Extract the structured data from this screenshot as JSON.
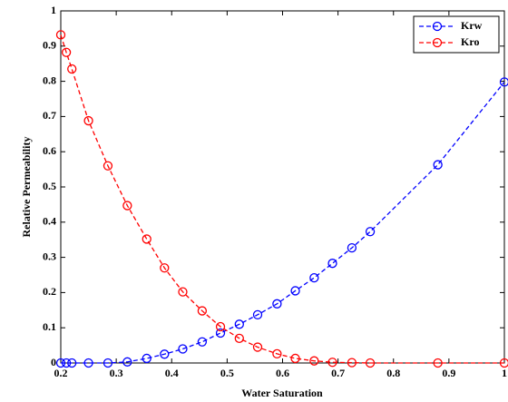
{
  "chart_data": {
    "type": "line",
    "xlabel": "Water Saturation",
    "ylabel": "Relative Permeability",
    "x": [
      0.2,
      0.21,
      0.22,
      0.25,
      0.285,
      0.32,
      0.355,
      0.387,
      0.42,
      0.455,
      0.488,
      0.522,
      0.555,
      0.59,
      0.623,
      0.657,
      0.69,
      0.725,
      0.758,
      0.88,
      1.0
    ],
    "series": [
      {
        "name": "Krw",
        "color": "#0000ff",
        "values": [
          0,
          0,
          0,
          0,
          0,
          0.003,
          0.013,
          0.025,
          0.04,
          0.06,
          0.085,
          0.11,
          0.137,
          0.168,
          0.205,
          0.242,
          0.283,
          0.327,
          0.373,
          0.563,
          0.798
        ]
      },
      {
        "name": "Kro",
        "color": "#ff0000",
        "values": [
          0.932,
          0.882,
          0.835,
          0.688,
          0.56,
          0.447,
          0.352,
          0.27,
          0.202,
          0.148,
          0.103,
          0.07,
          0.045,
          0.026,
          0.013,
          0.006,
          0.002,
          0.001,
          0,
          0,
          0
        ]
      }
    ],
    "xlim": [
      0.2,
      1
    ],
    "xticks": [
      0.2,
      0.3,
      0.4,
      0.5,
      0.6,
      0.7,
      0.8,
      0.9,
      1
    ],
    "ylim": [
      0,
      1
    ],
    "yticks": [
      0,
      0.1,
      0.2,
      0.3,
      0.4,
      0.5,
      0.6,
      0.7,
      0.8,
      0.9,
      1
    ],
    "legend": "northeast"
  }
}
